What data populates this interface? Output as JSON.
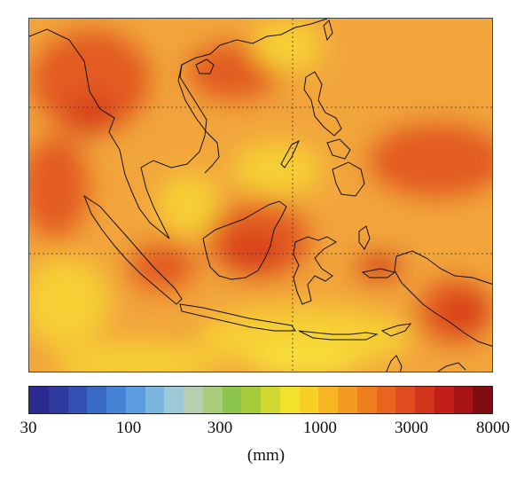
{
  "colorbar": {
    "ticks": [
      "30",
      "100",
      "300",
      "1000",
      "3000",
      "8000"
    ],
    "unit": "(mm)",
    "colors": [
      "#2b2a8e",
      "#2f3a9f",
      "#3450b3",
      "#3b69c6",
      "#4682d6",
      "#5c9de0",
      "#7bb6e1",
      "#9dc8d6",
      "#b5cfb0",
      "#a9cc7a",
      "#8cc54c",
      "#a6cc3c",
      "#cfd932",
      "#f2e22a",
      "#f7cf25",
      "#f6b523",
      "#f39a22",
      "#ee7e20",
      "#e8641f",
      "#df4c1e",
      "#d3341c",
      "#c21f1b",
      "#a61416",
      "#7f0c10"
    ]
  },
  "map": {
    "region": "Southeast Asia",
    "colors": {
      "background": "#f2a53b",
      "wet": "#e35b22",
      "very_wet": "#d8421e",
      "dry": "#f6cf36",
      "driest": "#f8e23a",
      "coast": "#111111",
      "grid": "#333333"
    }
  }
}
